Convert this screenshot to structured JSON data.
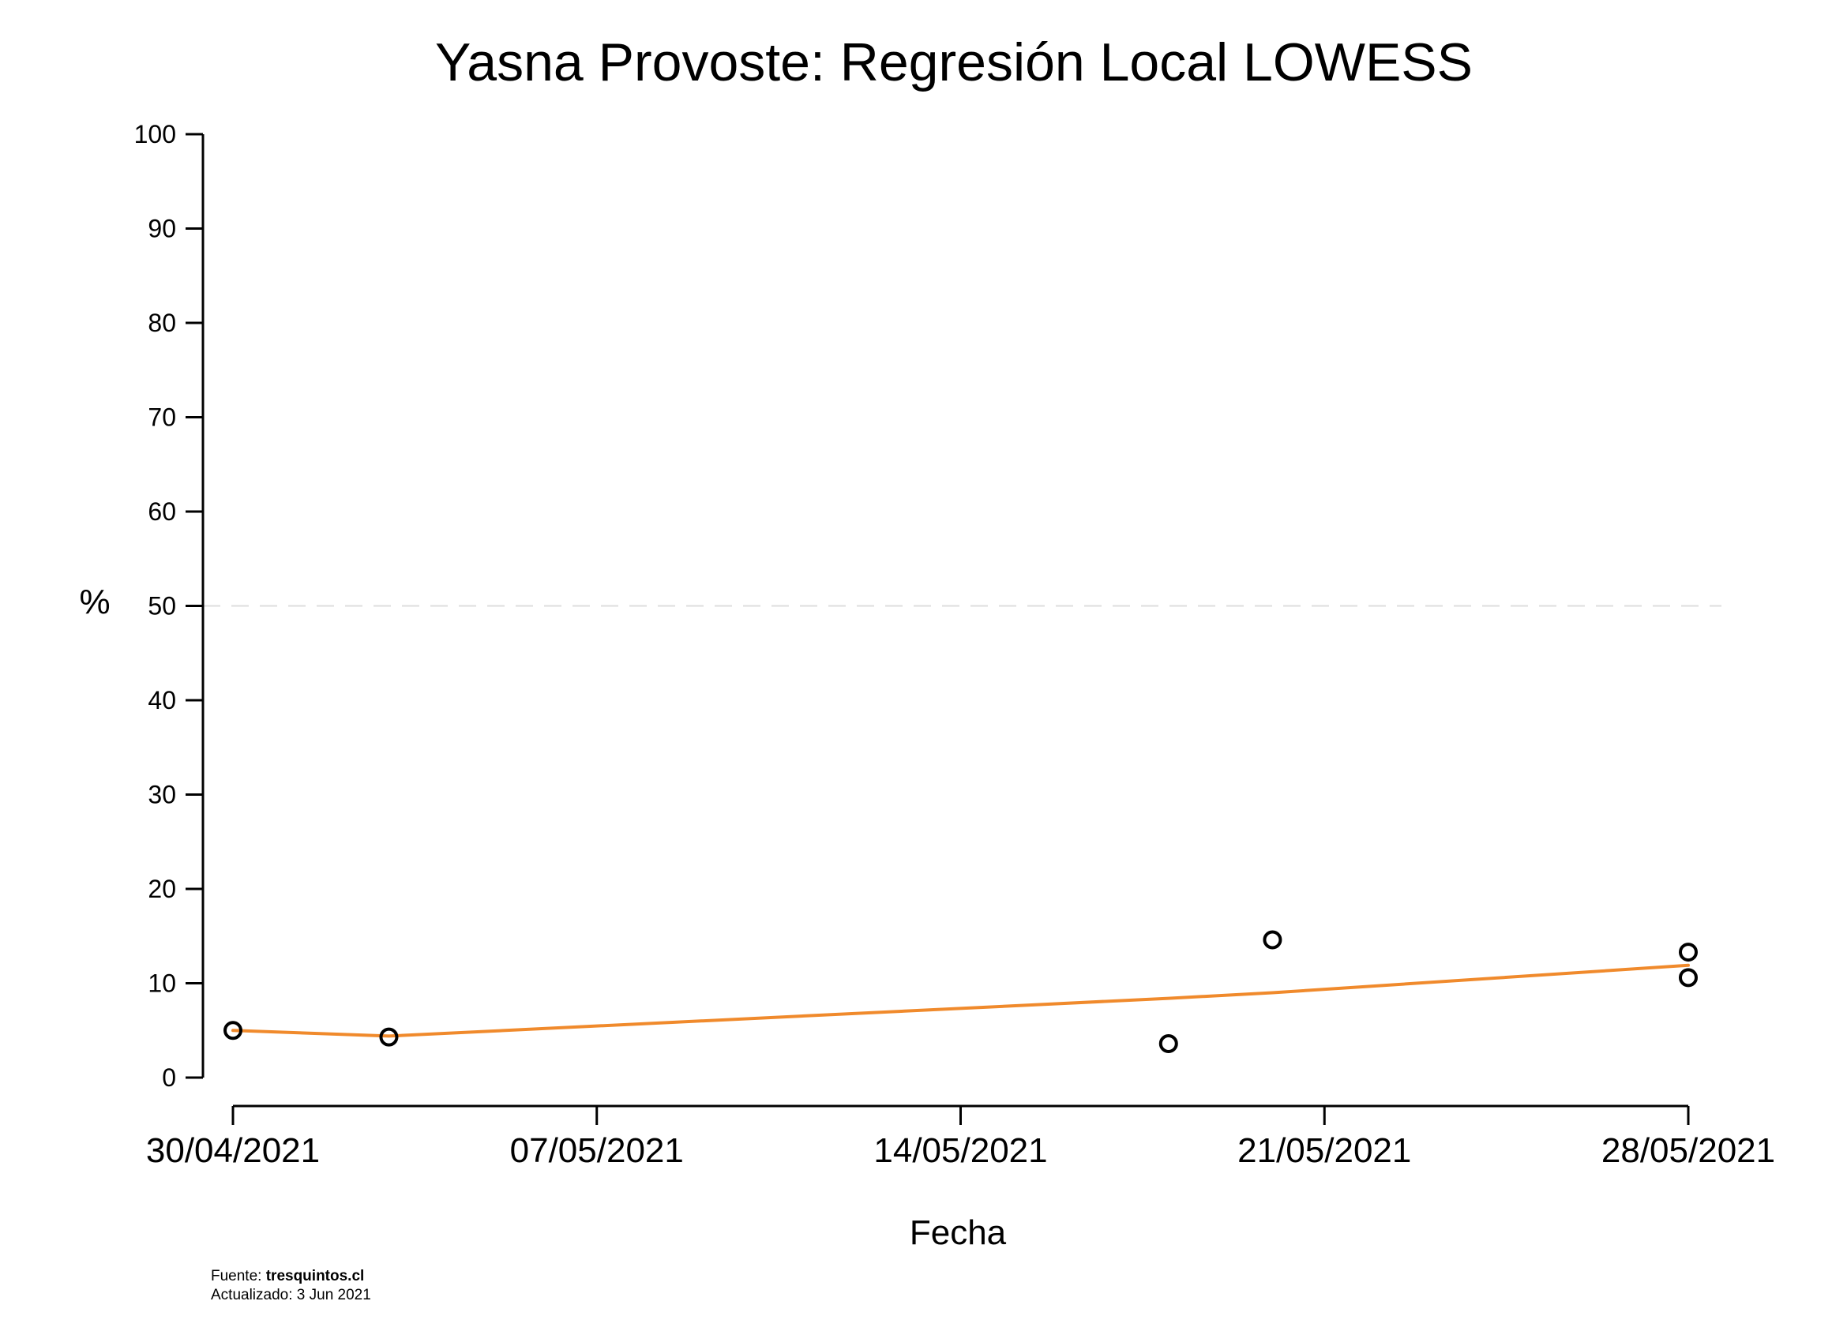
{
  "chart_data": {
    "type": "scatter",
    "title": "Yasna Provoste: Regresión Local LOWESS",
    "xlabel": "Fecha",
    "ylabel": "%",
    "ylim": [
      0,
      100
    ],
    "yticks": [
      "0",
      "10",
      "20",
      "30",
      "40",
      "50",
      "60",
      "70",
      "80",
      "90",
      "100"
    ],
    "xticks": [
      "30/04/2021",
      "07/05/2021",
      "14/05/2021",
      "21/05/2021",
      "28/05/2021"
    ],
    "xlim": [
      "2021-04-30",
      "2021-05-28"
    ],
    "reference_line": {
      "y": 50,
      "style": "dashed",
      "color": "#dddddd"
    },
    "points": [
      {
        "x": "2021-04-30",
        "y": 5.0
      },
      {
        "x": "2021-05-03",
        "y": 4.3
      },
      {
        "x": "2021-05-18",
        "y": 3.6
      },
      {
        "x": "2021-05-20",
        "y": 14.6
      },
      {
        "x": "2021-05-28",
        "y": 13.3
      },
      {
        "x": "2021-05-28",
        "y": 10.6
      }
    ],
    "lowess": {
      "x": [
        "2021-04-30",
        "2021-05-03",
        "2021-05-18",
        "2021-05-20",
        "2021-05-28"
      ],
      "y": [
        5.0,
        4.4,
        8.4,
        9.0,
        11.9
      ]
    },
    "colors": {
      "lowess": "#f08a2c",
      "points": "#000000",
      "axis": "#000000"
    }
  },
  "footer": {
    "source_prefix": "Fuente: ",
    "source_name": "tresquintos.cl",
    "updated": "Actualizado: 3 Jun 2021"
  }
}
